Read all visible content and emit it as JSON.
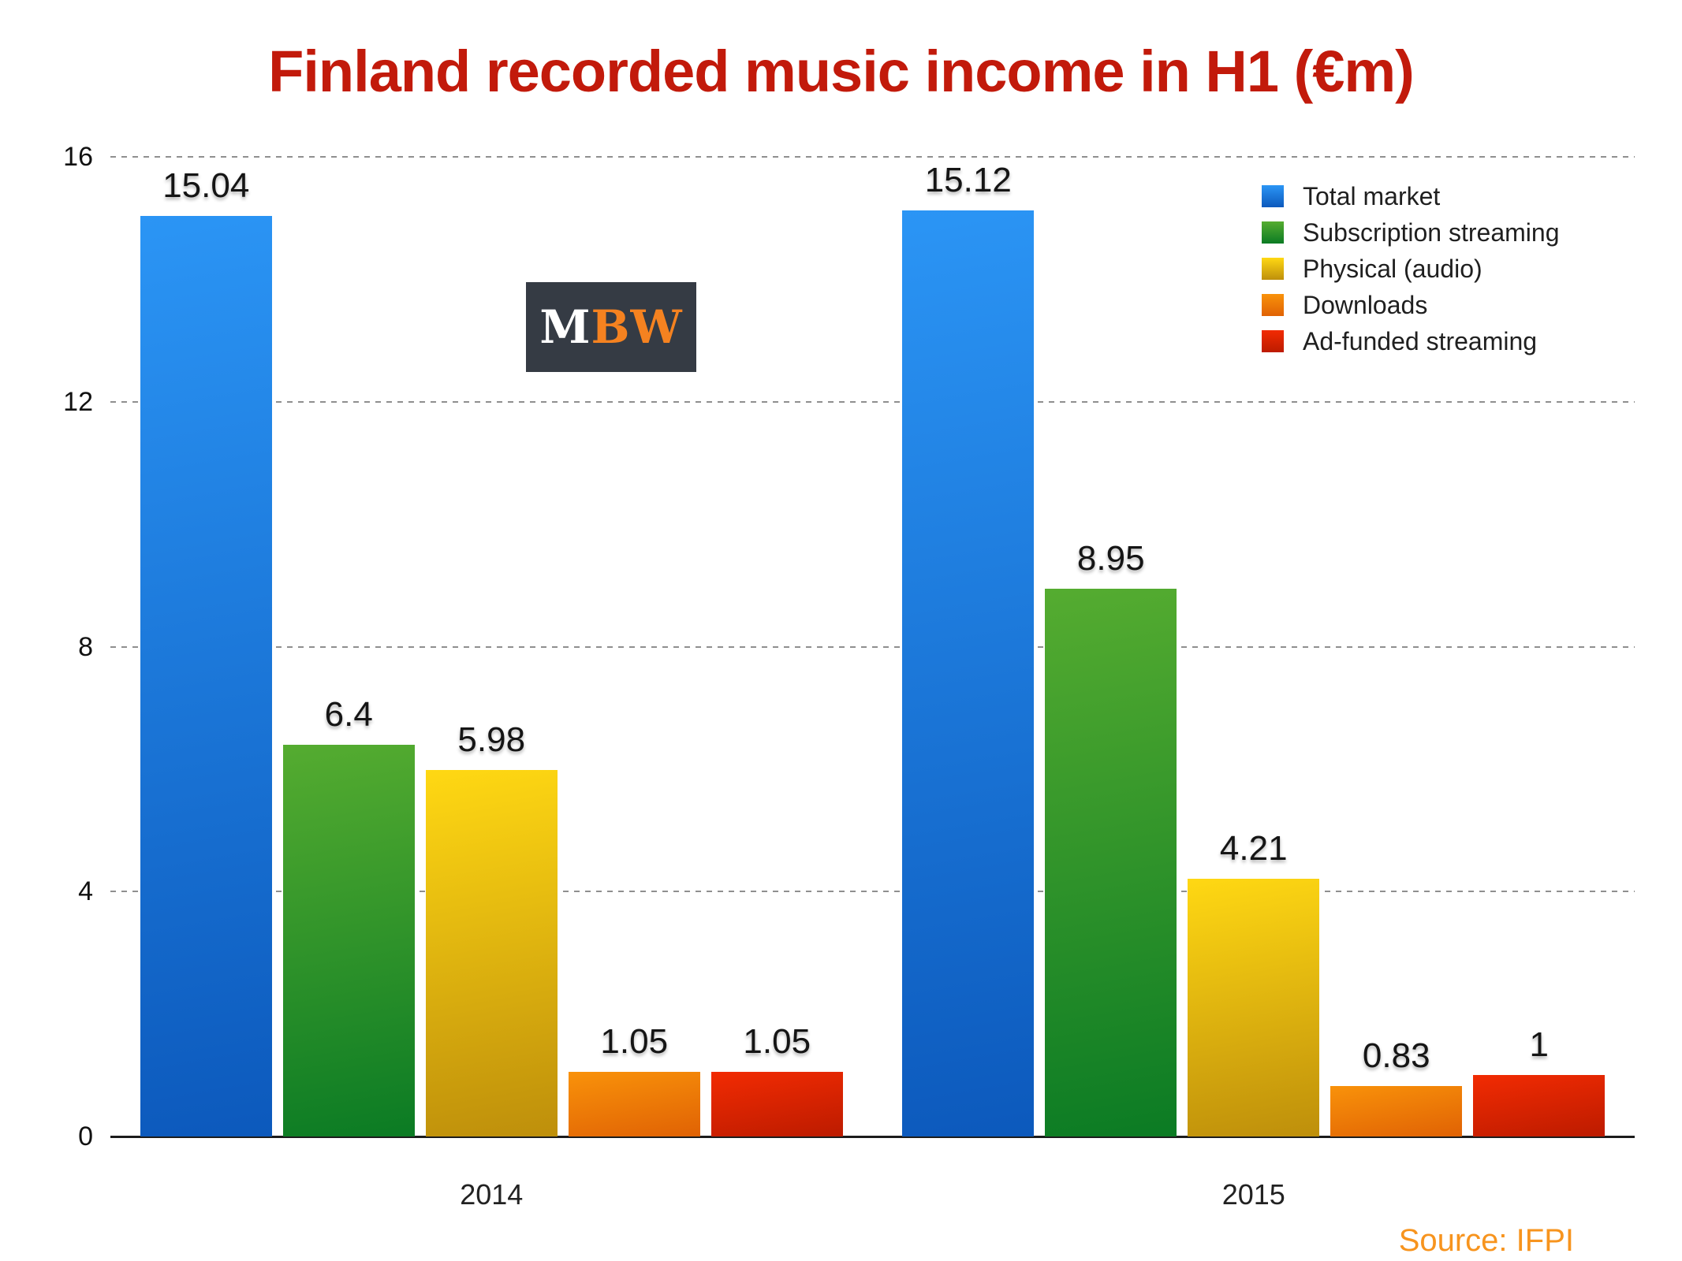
{
  "title": {
    "text": "Finland recorded music income in H1 (€m)",
    "color": "#C21A0B"
  },
  "logo": {
    "part1": "M",
    "part2": "BW",
    "bg": "#353B44",
    "part1_color": "#FFFFFF",
    "part2_color": "#F58220"
  },
  "source": {
    "text": "Source: IFPI",
    "color": "#F7941E"
  },
  "chart_data": {
    "type": "bar",
    "title": "Finland recorded music income in H1 (€m)",
    "categories": [
      "2014",
      "2015"
    ],
    "series": [
      {
        "name": "Total market",
        "values": [
          15.04,
          15.12
        ],
        "labels": [
          "15.04",
          "15.12"
        ],
        "color_top": "#2B95F5",
        "color_bottom": "#0C59BC"
      },
      {
        "name": "Subscription streaming",
        "values": [
          6.4,
          8.95
        ],
        "labels": [
          "6.4",
          "8.95"
        ],
        "color_top": "#55AC30",
        "color_bottom": "#0B7B24"
      },
      {
        "name": "Physical (audio)",
        "values": [
          5.98,
          4.21
        ],
        "labels": [
          "5.98",
          "4.21"
        ],
        "color_top": "#FFD813",
        "color_bottom": "#BE8F0B"
      },
      {
        "name": "Downloads",
        "values": [
          1.05,
          0.83
        ],
        "labels": [
          "1.05",
          "0.83"
        ],
        "color_top": "#F9920A",
        "color_bottom": "#E06204"
      },
      {
        "name": "Ad-funded streaming",
        "values": [
          1.05,
          1
        ],
        "labels": [
          "1.05",
          "1"
        ],
        "color_top": "#F22B02",
        "color_bottom": "#BC1B00"
      }
    ],
    "yticks": [
      0,
      4,
      8,
      12,
      16
    ],
    "ylim": [
      0,
      16
    ],
    "xlabel": "",
    "ylabel": "",
    "grid": "horizontal-dotted",
    "legend_position": "top-right"
  }
}
